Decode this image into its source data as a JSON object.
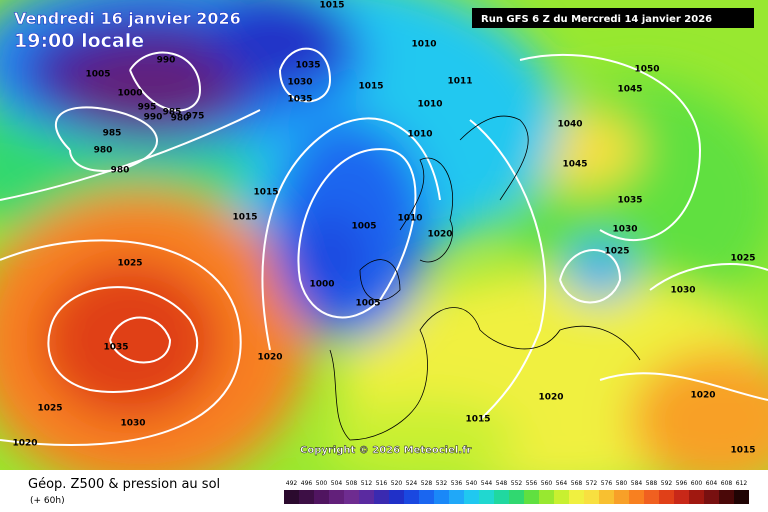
{
  "header": {
    "date": "Vendredi 16 janvier 2026",
    "time": "19:00 locale",
    "run": "Run GFS 6 Z du Mercredi 14 janvier 2026",
    "copyright": "Copyright © 2026 Meteociel.fr"
  },
  "footer": {
    "title": "Géop. Z500 & pression au sol",
    "lead": "(+ 60h)"
  },
  "isobar_labels": [
    1005,
    1000,
    990,
    995,
    990,
    985,
    980,
    975,
    985,
    980,
    980,
    1035,
    1030,
    1035,
    1015,
    1010,
    1015,
    1010,
    1010,
    1011,
    1015,
    1015,
    1005,
    1010,
    1000,
    1005,
    1020,
    1025,
    1035,
    1025,
    1030,
    1020,
    1020,
    1015,
    1020,
    1050,
    1045,
    1040,
    1045,
    1035,
    1030,
    1025,
    1030,
    1025,
    1020,
    1015
  ],
  "scale": [
    {
      "value": 492,
      "color": "#2b0a2e"
    },
    {
      "value": 496,
      "color": "#3d0f45"
    },
    {
      "value": 500,
      "color": "#501560"
    },
    {
      "value": 504,
      "color": "#62207a"
    },
    {
      "value": 508,
      "color": "#6e2c90"
    },
    {
      "value": 512,
      "color": "#5a2aa0"
    },
    {
      "value": 516,
      "color": "#3a2ab0"
    },
    {
      "value": 520,
      "color": "#2030c8"
    },
    {
      "value": 524,
      "color": "#1a48e0"
    },
    {
      "value": 528,
      "color": "#1a66f0"
    },
    {
      "value": 532,
      "color": "#1a88f8"
    },
    {
      "value": 536,
      "color": "#20a8f8"
    },
    {
      "value": 540,
      "color": "#20c8f0"
    },
    {
      "value": 544,
      "color": "#20d8d0"
    },
    {
      "value": 548,
      "color": "#20d8a0"
    },
    {
      "value": 552,
      "color": "#30d870"
    },
    {
      "value": 556,
      "color": "#60e040"
    },
    {
      "value": 560,
      "color": "#98e830"
    },
    {
      "value": 564,
      "color": "#c8f030"
    },
    {
      "value": 568,
      "color": "#f0f040"
    },
    {
      "value": 572,
      "color": "#f8e040"
    },
    {
      "value": 576,
      "color": "#f8c030"
    },
    {
      "value": 580,
      "color": "#f8a028"
    },
    {
      "value": 584,
      "color": "#f88020"
    },
    {
      "value": 588,
      "color": "#f06020"
    },
    {
      "value": 592,
      "color": "#e04018"
    },
    {
      "value": 596,
      "color": "#c82818"
    },
    {
      "value": 600,
      "color": "#a01810"
    },
    {
      "value": 604,
      "color": "#781010"
    },
    {
      "value": 608,
      "color": "#4a0808"
    },
    {
      "value": 612,
      "color": "#200404"
    }
  ]
}
